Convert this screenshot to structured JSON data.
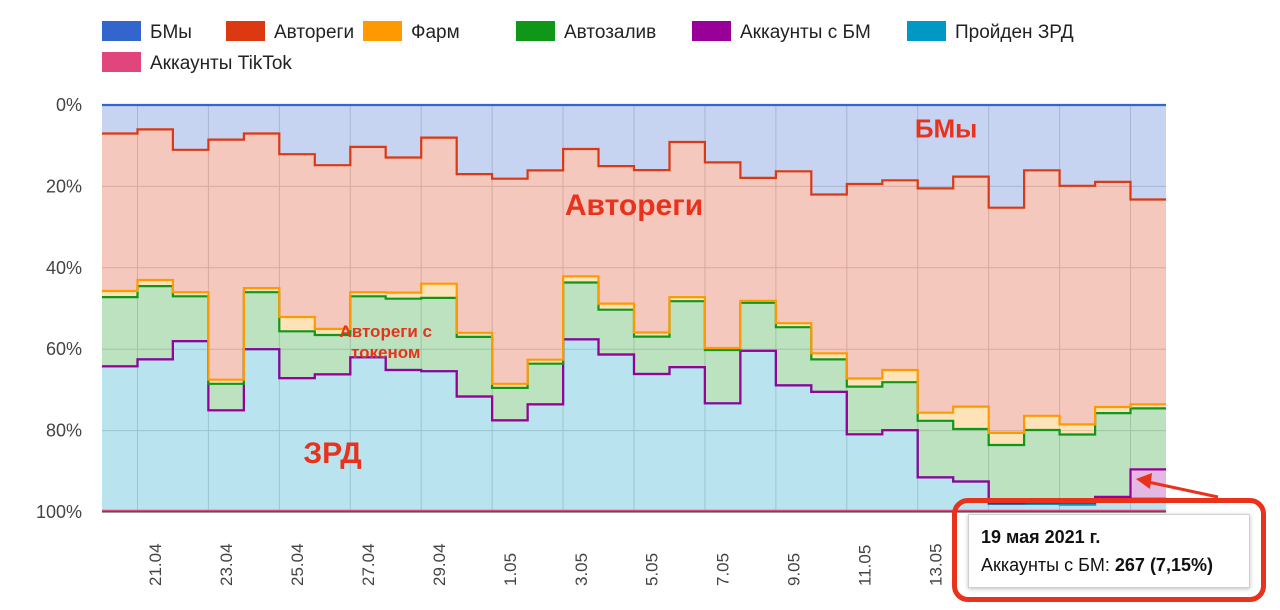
{
  "chart_data": {
    "type": "area",
    "stacked": "percent",
    "stepped": true,
    "xlabel": "",
    "ylabel": "",
    "ylim": [
      0,
      100
    ],
    "y_ticks": [
      "0%",
      "20%",
      "40%",
      "60%",
      "80%",
      "100%"
    ],
    "x_tick_labels": [
      "21.04",
      "23.04",
      "25.04",
      "27.04",
      "29.04",
      "1.05",
      "3.05",
      "5.05",
      "7.05",
      "9.05",
      "11.05",
      "13.05"
    ],
    "categories": [
      "20.04",
      "21.04",
      "22.04",
      "23.04",
      "24.04",
      "25.04",
      "26.04",
      "27.04",
      "28.04",
      "29.04",
      "30.04",
      "1.05",
      "2.05",
      "3.05",
      "4.05",
      "5.05",
      "6.05",
      "7.05",
      "8.05",
      "9.05",
      "10.05",
      "11.05",
      "12.05",
      "13.05",
      "14.05",
      "15.05",
      "16.05",
      "17.05",
      "18.05",
      "19.05"
    ],
    "legend_position": "top",
    "grid": true,
    "series": [
      {
        "name": "Аккаунты TikTok",
        "color": "#e0457b",
        "values": [
          0.3,
          0.3,
          0.3,
          0.3,
          0.3,
          0.3,
          0.3,
          0.3,
          0.3,
          0.3,
          0.3,
          0.3,
          0.3,
          0.3,
          0.3,
          0.3,
          0.3,
          0.3,
          0.3,
          0.3,
          0.3,
          0.3,
          0.3,
          0.3,
          0.3,
          0.3,
          0.3,
          0.3,
          0.3,
          0.3
        ]
      },
      {
        "name": "Пройден ЗРД",
        "color": "#0099c6",
        "values": [
          35.5,
          37.2,
          41.7,
          24.7,
          39.7,
          32.6,
          33.5,
          37.7,
          34.6,
          34.3,
          27.8,
          22.2,
          26.2,
          42.1,
          38.4,
          33.6,
          35.3,
          26.4,
          39.3,
          30.8,
          29.2,
          18.8,
          19.8,
          8.2,
          7.2,
          1.7,
          1.7,
          1.5,
          2.8,
          3.0
        ]
      },
      {
        "name": "Аккаунты с БМ",
        "color": "#990099",
        "values": [
          0,
          0,
          0,
          0,
          0,
          0,
          0,
          0,
          0,
          0,
          0,
          0,
          0,
          0,
          0,
          0,
          0,
          0,
          0,
          0,
          0,
          0,
          0,
          0,
          0,
          0.2,
          0.3,
          0.5,
          0.6,
          7.15
        ]
      },
      {
        "name": "Автозалив",
        "color": "#109618",
        "values": [
          17.0,
          18.0,
          11.0,
          6.5,
          14.0,
          11.5,
          9.7,
          15.0,
          17.5,
          18.0,
          14.5,
          8.0,
          10.0,
          14.0,
          11.0,
          9.2,
          16.2,
          13.1,
          11.8,
          14.3,
          8.0,
          11.7,
          11.8,
          13.9,
          12.9,
          14.3,
          17.9,
          16.8,
          20.6,
          15.0
        ]
      },
      {
        "name": "Фарм",
        "color": "#ff9900",
        "values": [
          1.5,
          1.5,
          1.0,
          1.0,
          1.0,
          3.5,
          1.5,
          1.0,
          1.5,
          3.5,
          1.0,
          1.0,
          1.0,
          1.5,
          1.5,
          1.0,
          1.0,
          0.5,
          0.5,
          1.0,
          1.5,
          2.0,
          3.0,
          2.0,
          5.5,
          3.0,
          3.5,
          2.5,
          1.5,
          1.0
        ]
      },
      {
        "name": "Автореги",
        "color": "#dc3912",
        "values": [
          38.7,
          37.0,
          35.0,
          59.0,
          38.0,
          40.0,
          40.2,
          35.7,
          33.2,
          35.9,
          38.6,
          50.4,
          46.6,
          31.3,
          33.8,
          39.9,
          38.1,
          45.6,
          30.2,
          37.3,
          39.0,
          47.8,
          46.6,
          55.1,
          56.5,
          55.5,
          60.5,
          58.8,
          55.3,
          50.3
        ]
      },
      {
        "name": "БМы",
        "color": "#3366cc",
        "values": [
          7.0,
          6.0,
          11.0,
          8.5,
          7.0,
          12.1,
          14.8,
          10.3,
          12.9,
          8.0,
          16.8,
          18.1,
          16.1,
          10.8,
          15.0,
          16.0,
          9.1,
          14.1,
          17.9,
          16.3,
          22.0,
          19.4,
          18.5,
          20.5,
          17.6,
          25.3,
          16.1,
          19.9,
          18.9,
          23.2
        ]
      }
    ],
    "annotations": [
      {
        "text": "БМы",
        "category_index": 23.8,
        "y_pct": 8
      },
      {
        "text": "Автореги",
        "category_index": 15,
        "y_pct": 27
      },
      {
        "text": "Автореги с\nтокеном",
        "category_index": 8,
        "y_pct": 57
      },
      {
        "text": "ЗРД",
        "category_index": 6.5,
        "y_pct": 88
      }
    ]
  },
  "legend": [
    {
      "label": "БМы",
      "color": "#3366cc"
    },
    {
      "label": "Автореги",
      "color": "#dc3912"
    },
    {
      "label": "Фарм",
      "color": "#ff9900"
    },
    {
      "label": "Автозалив",
      "color": "#109618"
    },
    {
      "label": "Аккаунты с БМ",
      "color": "#990099"
    },
    {
      "label": "Пройден ЗРД",
      "color": "#0099c6"
    },
    {
      "label": "Аккаунты TikTok",
      "color": "#e0457b"
    }
  ],
  "tooltip": {
    "date": "19 мая 2021 г.",
    "label": "Аккаунты с БМ: ",
    "value": "267 (7,15%)"
  },
  "highlight_color": "#e8321c"
}
